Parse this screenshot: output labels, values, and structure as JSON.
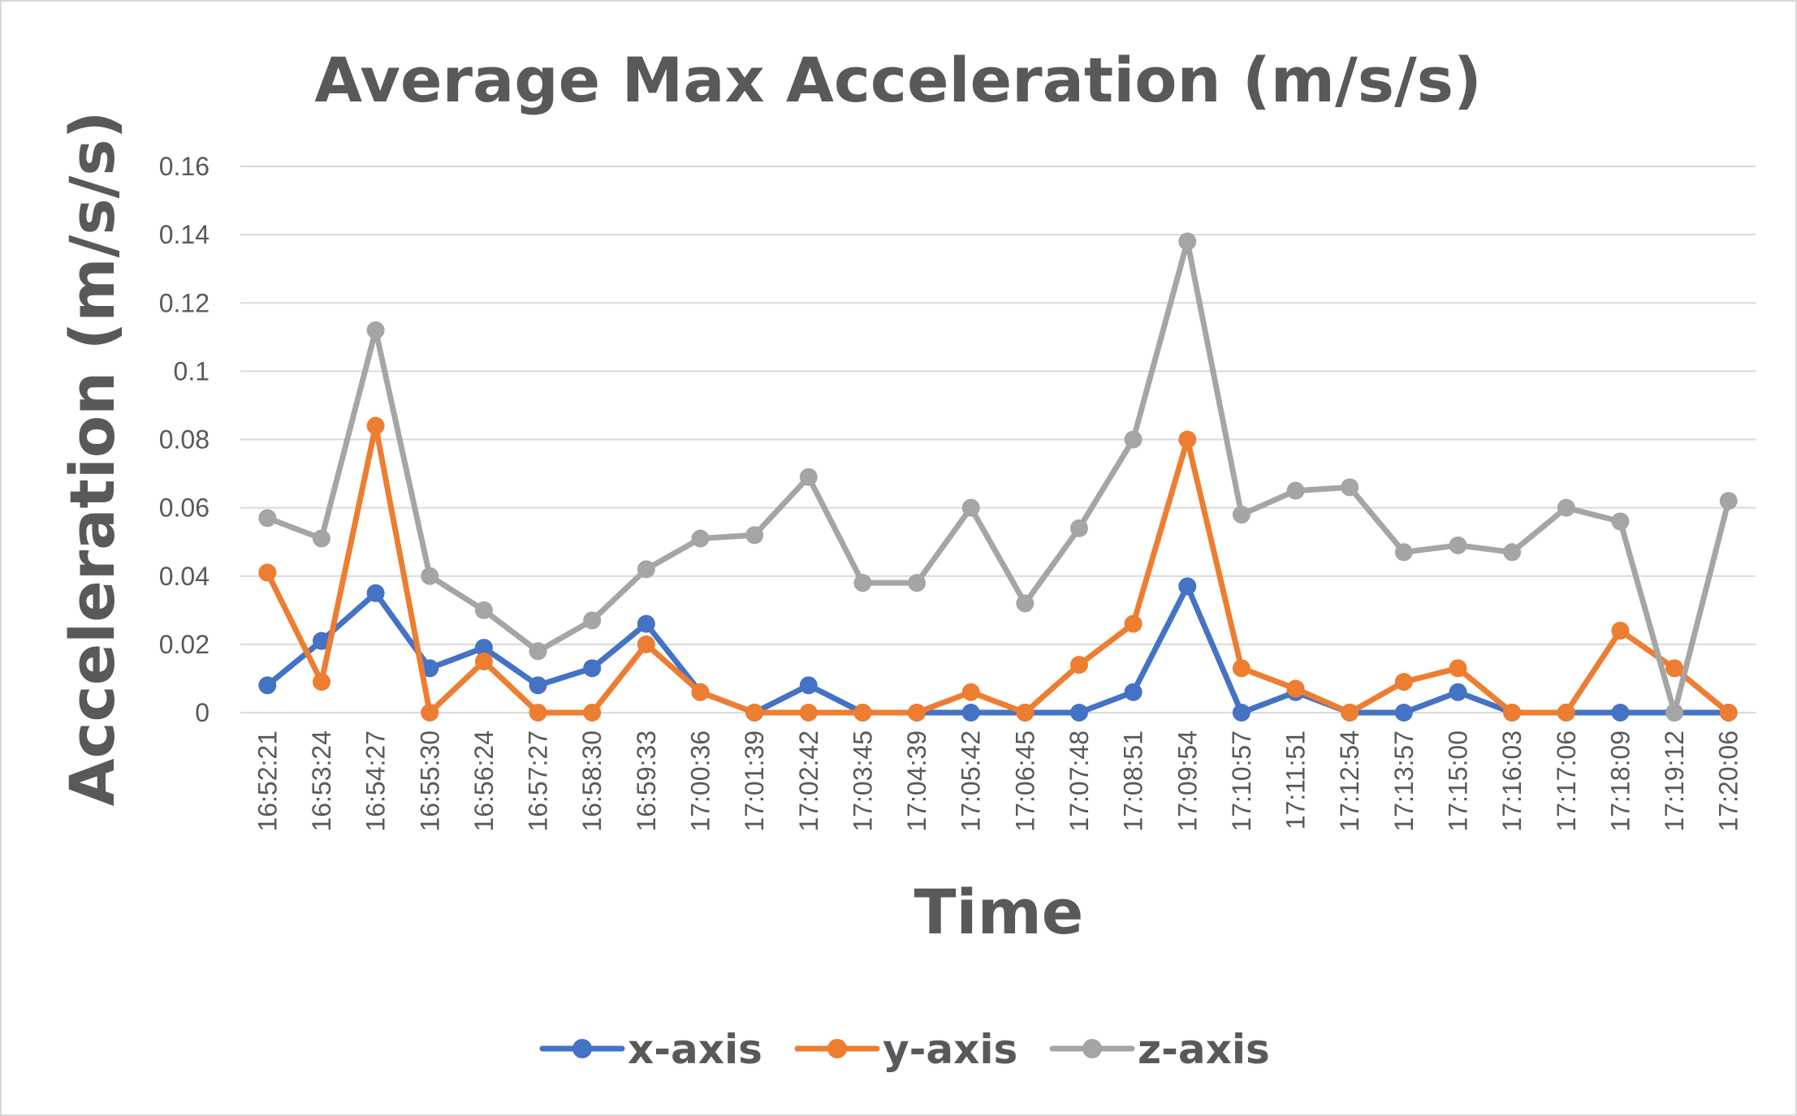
{
  "chart_data": {
    "type": "line",
    "title": "Average Max Acceleration (m/s/s)",
    "xlabel": "Time",
    "ylabel": "Acceleration (m/s/s)",
    "ylim": [
      0,
      0.16
    ],
    "yticks": [
      0,
      0.02,
      0.04,
      0.06,
      0.08,
      0.1,
      0.12,
      0.14,
      0.16
    ],
    "ytick_labels": [
      "0",
      "0.02",
      "0.04",
      "0.06",
      "0.08",
      "0.1",
      "0.12",
      "0.14",
      "0.16"
    ],
    "grid": true,
    "legend_position": "bottom",
    "categories": [
      "16:52:21",
      "16:53:24",
      "16:54:27",
      "16:55:30",
      "16:56:24",
      "16:57:27",
      "16:58:30",
      "16:59:33",
      "17:00:36",
      "17:01:39",
      "17:02:42",
      "17:03:45",
      "17:04:39",
      "17:05:42",
      "17:06:45",
      "17:07:48",
      "17:08:51",
      "17:09:54",
      "17:10:57",
      "17:11:51",
      "17:12:54",
      "17:13:57",
      "17:15:00",
      "17:16:03",
      "17:17:06",
      "17:18:09",
      "17:19:12",
      "17:20:06"
    ],
    "series": [
      {
        "name": "x-axis",
        "color": "#4472c4",
        "values": [
          0.008,
          0.021,
          0.035,
          0.013,
          0.019,
          0.008,
          0.013,
          0.026,
          0.006,
          0.0,
          0.008,
          0.0,
          0.0,
          0.0,
          0.0,
          0.0,
          0.006,
          0.037,
          0.0,
          0.006,
          0.0,
          0.0,
          0.006,
          0.0,
          0.0,
          0.0,
          0.0,
          0.0
        ]
      },
      {
        "name": "y-axis",
        "color": "#ed7d31",
        "values": [
          0.041,
          0.009,
          0.084,
          0.0,
          0.015,
          0.0,
          0.0,
          0.02,
          0.006,
          0.0,
          0.0,
          0.0,
          0.0,
          0.006,
          0.0,
          0.014,
          0.026,
          0.08,
          0.013,
          0.007,
          0.0,
          0.009,
          0.013,
          0.0,
          0.0,
          0.024,
          0.013,
          0.0
        ]
      },
      {
        "name": "z-axis",
        "color": "#a5a5a5",
        "values": [
          0.057,
          0.051,
          0.112,
          0.04,
          0.03,
          0.018,
          0.027,
          0.042,
          0.051,
          0.052,
          0.069,
          0.038,
          0.038,
          0.06,
          0.032,
          0.054,
          0.08,
          0.138,
          0.058,
          0.065,
          0.066,
          0.047,
          0.049,
          0.047,
          0.06,
          0.056,
          0.0,
          0.062
        ]
      }
    ]
  }
}
